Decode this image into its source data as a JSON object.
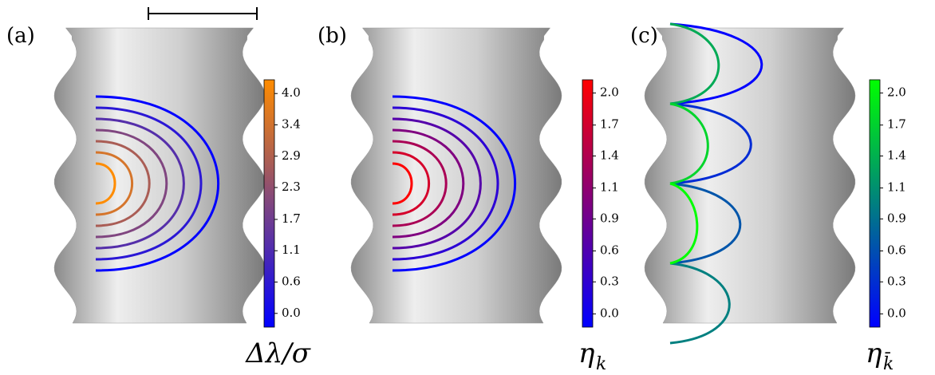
{
  "panels": [
    {
      "label": "(a)",
      "colorbar": {
        "label": "Δλ/σ",
        "colors": [
          "#0000ff",
          "#ff8c00"
        ],
        "clim": [
          -0.25,
          4.25
        ],
        "ticks": [
          {
            "value": 0,
            "label": "0.0"
          },
          {
            "value": 0.57,
            "label": "0.6"
          },
          {
            "value": 1.14,
            "label": "1.1"
          },
          {
            "value": 1.71,
            "label": "1.7"
          },
          {
            "value": 2.29,
            "label": "2.3"
          },
          {
            "value": 2.86,
            "label": "2.9"
          },
          {
            "value": 3.43,
            "label": "3.4"
          },
          {
            "value": 4.0,
            "label": "4.0"
          }
        ]
      }
    },
    {
      "label": "(b)",
      "colorbar": {
        "label": {
          "symbol": "η",
          "subscript": "k"
        },
        "colors": [
          "#0000ff",
          "#ff0000"
        ],
        "clim": [
          -0.12,
          2.12
        ],
        "ticks": [
          {
            "value": 0,
            "label": "0.0"
          },
          {
            "value": 0.29,
            "label": "0.3"
          },
          {
            "value": 0.57,
            "label": "0.6"
          },
          {
            "value": 0.86,
            "label": "0.9"
          },
          {
            "value": 1.14,
            "label": "1.1"
          },
          {
            "value": 1.43,
            "label": "1.4"
          },
          {
            "value": 1.71,
            "label": "1.7"
          },
          {
            "value": 2.0,
            "label": "2.0"
          }
        ]
      }
    },
    {
      "label": "(c)",
      "colorbar": {
        "label": {
          "symbol": "η",
          "subscript": "k̄"
        },
        "colors": [
          "#0000ff",
          "#00ff00"
        ],
        "clim": [
          -0.12,
          2.12
        ],
        "ticks": [
          {
            "value": 0,
            "label": "0.0"
          },
          {
            "value": 0.29,
            "label": "0.3"
          },
          {
            "value": 0.57,
            "label": "0.6"
          },
          {
            "value": 0.86,
            "label": "0.9"
          },
          {
            "value": 1.14,
            "label": "1.1"
          },
          {
            "value": 1.43,
            "label": "1.4"
          },
          {
            "value": 1.71,
            "label": "1.7"
          },
          {
            "value": 2.0,
            "label": "2.0"
          }
        ]
      }
    }
  ]
}
